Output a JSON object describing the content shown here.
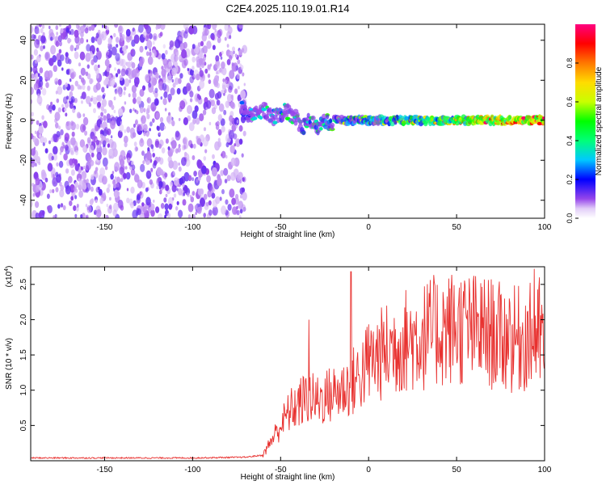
{
  "figure": {
    "title": "C2E4.2025.110.19.01.R14"
  },
  "chart_data": [
    {
      "type": "heatmap",
      "title": "C2E4.2025.110.19.01.R14",
      "xlabel": "Height of straight line (km)",
      "ylabel": "Frequency (Hz)",
      "xlim": [
        -192,
        100
      ],
      "ylim": [
        -49,
        48
      ],
      "xticks": [
        -150,
        -100,
        -50,
        0,
        50,
        100
      ],
      "yticks": [
        -40,
        -20,
        0,
        20,
        40
      ],
      "xtick_labels": [
        "-150",
        "-100",
        "-50",
        "0",
        "50",
        "100"
      ],
      "ytick_labels": [
        "-40",
        "-20",
        "0",
        "20",
        "40"
      ],
      "noise_region_km": [
        -192,
        -70
      ],
      "signal_line_frequency_hz": 0,
      "signal_band_frequency_hz": [
        -3,
        3
      ],
      "colorbar": {
        "label": "Normalized spectral amplitude",
        "range": [
          0.0,
          1.0
        ],
        "ticks": [
          0.0,
          0.2,
          0.4,
          0.6,
          0.8
        ],
        "tick_labels": [
          "0.0",
          "0.2",
          "0.4",
          "0.6",
          "0.8"
        ],
        "colors": [
          "#ffffff",
          "#d7b8f5",
          "#8a2be2",
          "#0000ff",
          "#00ffff",
          "#00ff00",
          "#ffff00",
          "#ff8000",
          "#ff0000",
          "#ff0080"
        ]
      }
    },
    {
      "type": "line",
      "xlabel": "Height of straight line (km)",
      "ylabel": "SNR (10 * v/v)",
      "scale_label": "(x10",
      "scale_exponent": "4",
      "scale_suffix": ")",
      "xlim": [
        -192,
        100
      ],
      "ylim": [
        0,
        2.75
      ],
      "xticks": [
        -150,
        -100,
        -50,
        0,
        50,
        100
      ],
      "yticks": [
        0.5,
        1.0,
        1.5,
        2.0,
        2.5
      ],
      "xtick_labels": [
        "-150",
        "-100",
        "-50",
        "0",
        "50",
        "100"
      ],
      "ytick_labels": [
        "0.5",
        "1.0",
        "1.5",
        "2.0",
        "2.5"
      ],
      "color": "#e8312f",
      "series": [
        {
          "name": "SNR",
          "x": [
            -192,
            -100,
            -70,
            -60,
            -55,
            -50,
            -45,
            -40,
            -35,
            -30,
            -25,
            -20,
            -15,
            -10,
            -5,
            0,
            10,
            20,
            30,
            40,
            50,
            60,
            70,
            80,
            90,
            95,
            100
          ],
          "y": [
            0.04,
            0.04,
            0.05,
            0.08,
            0.3,
            0.5,
            0.7,
            0.8,
            0.9,
            0.85,
            0.9,
            0.95,
            1.0,
            1.1,
            1.2,
            1.4,
            1.55,
            1.7,
            1.75,
            1.85,
            1.9,
            1.85,
            1.8,
            1.7,
            1.75,
            1.75,
            1.7
          ],
          "peaks": [
            {
              "x": -34,
              "y": 2.0
            },
            {
              "x": -10,
              "y": 2.68
            },
            {
              "x": 80,
              "y": 2.3
            },
            {
              "x": 94,
              "y": 2.72
            },
            {
              "x": 97,
              "y": 2.6
            }
          ]
        }
      ]
    }
  ]
}
